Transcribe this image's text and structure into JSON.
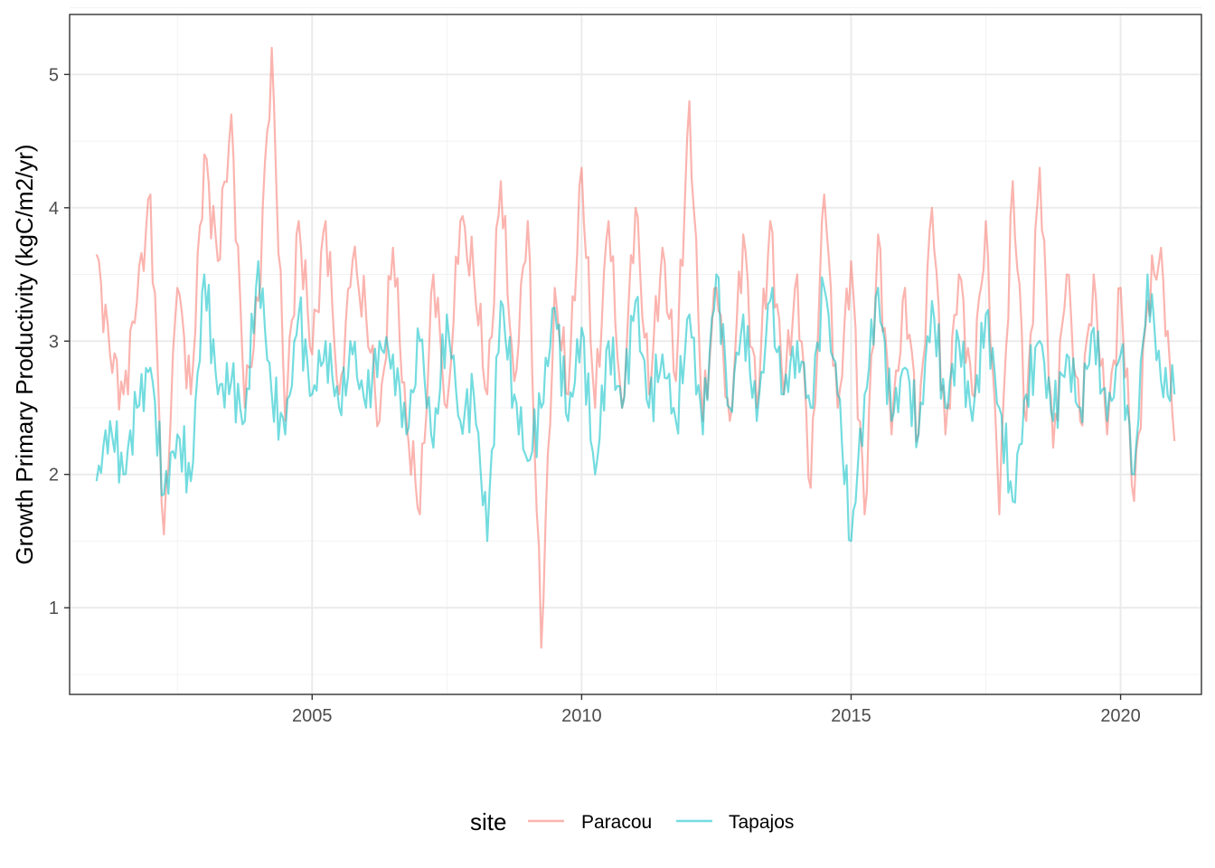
{
  "chart_data": {
    "type": "line",
    "title": "",
    "xlabel": "",
    "ylabel": "Growth Primary Productivity (kgC/m2/yr)",
    "xlim": [
      2001.0,
      2021.0
    ],
    "ylim": [
      0.5,
      5.5
    ],
    "x_ticks": [
      2005,
      2010,
      2015,
      2020
    ],
    "y_ticks": [
      1,
      2,
      3,
      4,
      5
    ],
    "grid": true,
    "legend": {
      "title": "site",
      "position": "bottom"
    },
    "x": [
      2001.0,
      2001.25,
      2001.5,
      2001.75,
      2002.0,
      2002.25,
      2002.5,
      2002.75,
      2003.0,
      2003.25,
      2003.5,
      2003.75,
      2004.0,
      2004.25,
      2004.5,
      2004.75,
      2005.0,
      2005.25,
      2005.5,
      2005.75,
      2006.0,
      2006.25,
      2006.5,
      2006.75,
      2007.0,
      2007.25,
      2007.5,
      2007.75,
      2008.0,
      2008.25,
      2008.5,
      2008.75,
      2009.0,
      2009.25,
      2009.5,
      2009.75,
      2010.0,
      2010.25,
      2010.5,
      2010.75,
      2011.0,
      2011.25,
      2011.5,
      2011.75,
      2012.0,
      2012.25,
      2012.5,
      2012.75,
      2013.0,
      2013.25,
      2013.5,
      2013.75,
      2014.0,
      2014.25,
      2014.5,
      2014.75,
      2015.0,
      2015.25,
      2015.5,
      2015.75,
      2016.0,
      2016.25,
      2016.5,
      2016.75,
      2017.0,
      2017.25,
      2017.5,
      2017.75,
      2018.0,
      2018.25,
      2018.5,
      2018.75,
      2019.0,
      2019.25,
      2019.5,
      2019.75,
      2020.0,
      2020.25,
      2020.5,
      2020.75,
      2021.0
    ],
    "series": [
      {
        "name": "Paracou",
        "color": "#F8766D",
        "values": [
          3.65,
          2.9,
          2.6,
          3.3,
          4.1,
          1.55,
          3.4,
          2.6,
          4.4,
          3.6,
          4.7,
          2.5,
          3.3,
          5.2,
          2.4,
          3.9,
          2.9,
          3.9,
          2.6,
          3.6,
          3.2,
          2.4,
          3.7,
          2.4,
          1.7,
          3.5,
          2.5,
          3.9,
          3.5,
          2.6,
          4.2,
          2.7,
          3.9,
          0.7,
          3.4,
          2.6,
          4.3,
          2.5,
          3.9,
          2.5,
          4.0,
          2.6,
          3.7,
          2.7,
          4.8,
          2.4,
          3.4,
          2.4,
          3.8,
          2.5,
          3.9,
          2.6,
          3.5,
          1.9,
          4.1,
          2.5,
          3.6,
          1.7,
          3.8,
          2.3,
          3.4,
          2.3,
          4.0,
          2.3,
          3.5,
          2.6,
          3.9,
          1.7,
          4.2,
          2.4,
          4.3,
          2.2,
          3.5,
          2.4,
          3.5,
          2.3,
          3.4,
          1.8,
          3.3,
          3.7,
          2.25
        ]
      },
      {
        "name": "Tapajos",
        "color": "#00BFC4",
        "values": [
          1.95,
          2.4,
          2.0,
          2.5,
          2.8,
          1.85,
          2.3,
          1.95,
          3.5,
          2.6,
          2.7,
          2.4,
          3.6,
          2.6,
          2.3,
          3.2,
          2.6,
          3.0,
          2.5,
          2.9,
          2.5,
          3.0,
          2.9,
          2.3,
          3.0,
          2.2,
          3.2,
          2.4,
          2.6,
          1.5,
          3.3,
          2.6,
          2.1,
          2.5,
          3.25,
          2.4,
          3.1,
          2.0,
          3.0,
          2.5,
          3.3,
          2.5,
          2.9,
          2.4,
          3.2,
          2.3,
          3.5,
          2.5,
          3.2,
          2.4,
          3.3,
          2.6,
          3.0,
          2.5,
          3.4,
          2.6,
          1.5,
          2.6,
          3.4,
          2.4,
          2.8,
          2.3,
          3.3,
          2.5,
          3.0,
          2.4,
          3.2,
          2.5,
          1.8,
          2.6,
          3.0,
          2.4,
          2.9,
          2.5,
          3.1,
          2.4,
          2.9,
          2.0,
          3.5,
          2.7,
          2.6
        ]
      }
    ]
  }
}
